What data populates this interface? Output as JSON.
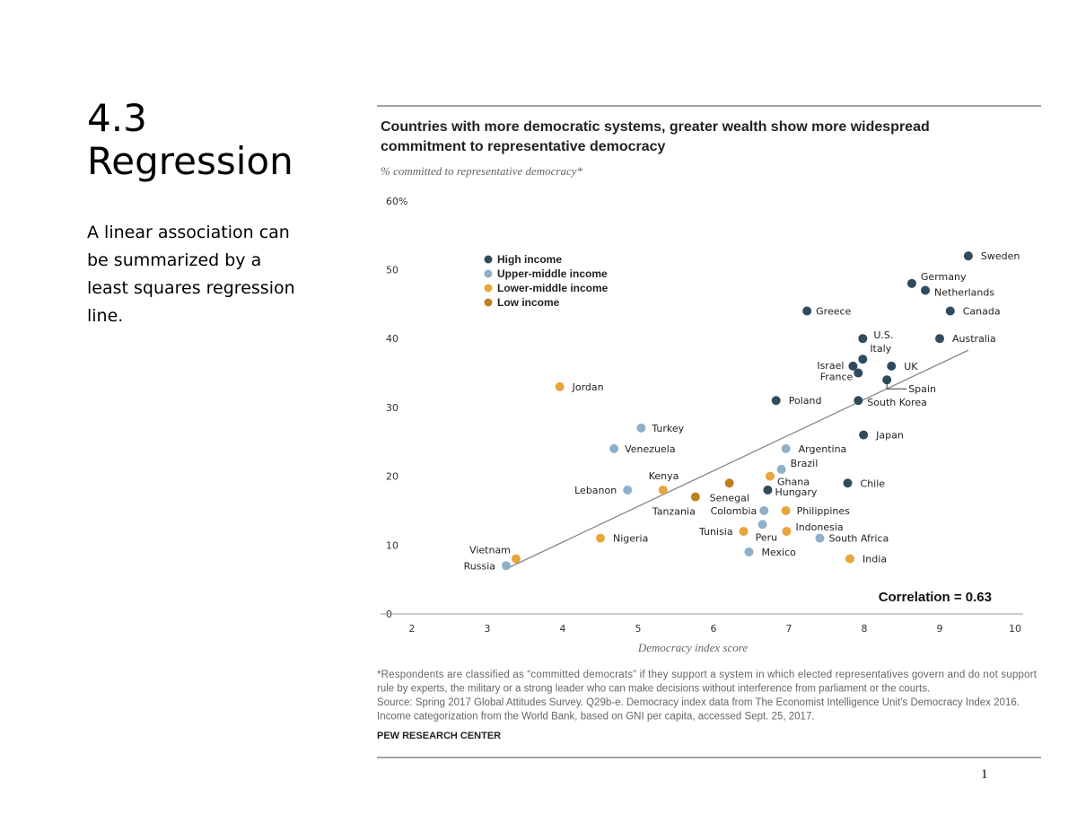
{
  "slide": {
    "heading_number": "4.3",
    "heading_title": "Regression",
    "description": "A linear association can\n be summarized by a\n least squares regression\nline.",
    "page_number": "1"
  },
  "chart_data": {
    "type": "scatter",
    "title_line1": "Countries with more democratic systems, greater wealth show more widespread",
    "title_line2": "commitment to representative democracy",
    "subtitle": "% committed to representative democracy*",
    "xlabel": "Democracy index score",
    "xlim": [
      2,
      10
    ],
    "ylim": [
      0,
      60
    ],
    "xticks": [
      "2",
      "3",
      "4",
      "5",
      "6",
      "7",
      "8",
      "9",
      "10"
    ],
    "yticks": [
      "0",
      "10",
      "20",
      "30",
      "40",
      "50",
      "60%"
    ],
    "grid": false,
    "legend_placement": "top-left",
    "categories": [
      {
        "key": "high",
        "name": "High income",
        "color": "#2f4b5d"
      },
      {
        "key": "upper",
        "name": "Upper-middle income",
        "color": "#8eb0cb"
      },
      {
        "key": "lower",
        "name": "Lower-middle income",
        "color": "#e8a53a"
      },
      {
        "key": "low",
        "name": "Low income",
        "color": "#bf7e1f"
      }
    ],
    "points": [
      {
        "name": "Sweden",
        "x": 9.38,
        "y": 52,
        "cat": "high"
      },
      {
        "name": "Germany",
        "x": 8.63,
        "y": 48,
        "cat": "high"
      },
      {
        "name": "Netherlands",
        "x": 8.81,
        "y": 47,
        "cat": "high"
      },
      {
        "name": "Canada",
        "x": 9.14,
        "y": 44,
        "cat": "high"
      },
      {
        "name": "Australia",
        "x": 9.0,
        "y": 40,
        "cat": "high"
      },
      {
        "name": "Greece",
        "x": 7.24,
        "y": 44,
        "cat": "high"
      },
      {
        "name": "U.S.",
        "x": 7.98,
        "y": 40,
        "cat": "high"
      },
      {
        "name": "Italy",
        "x": 7.98,
        "y": 37,
        "cat": "high"
      },
      {
        "name": "Israel",
        "x": 7.85,
        "y": 36,
        "cat": "high"
      },
      {
        "name": "France",
        "x": 7.92,
        "y": 35,
        "cat": "high"
      },
      {
        "name": "UK",
        "x": 8.36,
        "y": 36,
        "cat": "high"
      },
      {
        "name": "Spain",
        "x": 8.3,
        "y": 34,
        "cat": "high"
      },
      {
        "name": "South Korea",
        "x": 7.92,
        "y": 31,
        "cat": "high"
      },
      {
        "name": "Poland",
        "x": 6.83,
        "y": 31,
        "cat": "high"
      },
      {
        "name": "Japan",
        "x": 7.99,
        "y": 26,
        "cat": "high"
      },
      {
        "name": "Chile",
        "x": 7.78,
        "y": 19,
        "cat": "high"
      },
      {
        "name": "Hungary",
        "x": 6.72,
        "y": 18,
        "cat": "high"
      },
      {
        "name": "Jordan",
        "x": 3.96,
        "y": 33,
        "cat": "lower"
      },
      {
        "name": "Turkey",
        "x": 5.04,
        "y": 27,
        "cat": "upper"
      },
      {
        "name": "Venezuela",
        "x": 4.68,
        "y": 24,
        "cat": "upper"
      },
      {
        "name": "Argentina",
        "x": 6.96,
        "y": 24,
        "cat": "upper"
      },
      {
        "name": "Brazil",
        "x": 6.9,
        "y": 21,
        "cat": "upper"
      },
      {
        "name": "Ghana",
        "x": 6.75,
        "y": 20,
        "cat": "lower"
      },
      {
        "name": "Senegal",
        "x": 6.21,
        "y": 19,
        "cat": "low"
      },
      {
        "name": "Tanzania",
        "x": 5.76,
        "y": 17,
        "cat": "low"
      },
      {
        "name": "Kenya",
        "x": 5.33,
        "y": 18,
        "cat": "lower"
      },
      {
        "name": "Lebanon",
        "x": 4.86,
        "y": 18,
        "cat": "upper"
      },
      {
        "name": "Colombia",
        "x": 6.67,
        "y": 15,
        "cat": "upper"
      },
      {
        "name": "Philippines",
        "x": 6.96,
        "y": 15,
        "cat": "lower"
      },
      {
        "name": "Indonesia",
        "x": 6.97,
        "y": 12,
        "cat": "lower"
      },
      {
        "name": "Peru",
        "x": 6.65,
        "y": 13,
        "cat": "upper"
      },
      {
        "name": "Tunisia",
        "x": 6.4,
        "y": 12,
        "cat": "lower"
      },
      {
        "name": "South Africa",
        "x": 7.41,
        "y": 11,
        "cat": "upper"
      },
      {
        "name": "Mexico",
        "x": 6.47,
        "y": 9,
        "cat": "upper"
      },
      {
        "name": "India",
        "x": 7.81,
        "y": 8,
        "cat": "lower"
      },
      {
        "name": "Nigeria",
        "x": 4.5,
        "y": 11,
        "cat": "lower"
      },
      {
        "name": "Vietnam",
        "x": 3.38,
        "y": 8,
        "cat": "lower"
      },
      {
        "name": "Russia",
        "x": 3.25,
        "y": 7,
        "cat": "upper"
      }
    ],
    "regression_line": {
      "x": [
        3.26,
        9.38
      ],
      "y": [
        6.6,
        38.3
      ]
    },
    "annotation": "Correlation = 0.63",
    "footnote": [
      "*Respondents are classified as “committed democrats” if they support a system in which elected representatives govern and do not support",
      "rule by experts, the military or a strong leader who can make decisions without interference from parliament or the courts.",
      "Source: Spring 2017 Global Attitudes Survey. Q29b-e. Democracy index data from The Economist Intelligence Unit’s Democracy Index 2016.",
      "Income categorization from the World Bank, based on GNI per capita, accessed Sept. 25, 2017."
    ],
    "source_org": "PEW RESEARCH CENTER"
  }
}
